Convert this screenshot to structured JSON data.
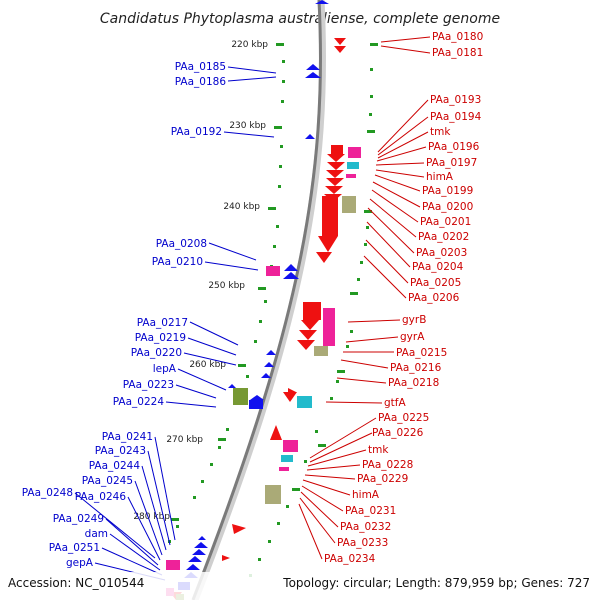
{
  "title": "Candidatus Phytoplasma australiense, complete genome",
  "footer": {
    "accession": "Accession: NC_010544",
    "summary": "Topology: circular; Length: 879,959 bp; Genes: 727"
  },
  "scale_labels": [
    "220 kbp",
    "230 kbp",
    "240 kbp",
    "250 kbp",
    "260 kbp",
    "270 kbp",
    "280 kbp"
  ],
  "genes_right": [
    "PAa_0180",
    "PAa_0181",
    "PAa_0193",
    "PAa_0194",
    "tmk",
    "PAa_0196",
    "PAa_0197",
    "himA",
    "PAa_0199",
    "PAa_0200",
    "PAa_0201",
    "PAa_0202",
    "PAa_0203",
    "PAa_0204",
    "PAa_0205",
    "PAa_0206",
    "gyrB",
    "gyrA",
    "PAa_0215",
    "PAa_0216",
    "PAa_0218",
    "gtfA",
    "PAa_0225",
    "PAa_0226",
    "tmk",
    "PAa_0228",
    "PAa_0229",
    "himA",
    "PAa_0231",
    "PAa_0232",
    "PAa_0233",
    "PAa_0234"
  ],
  "genes_left": [
    "PAa_0185",
    "PAa_0186",
    "PAa_0192",
    "PAa_0208",
    "PAa_0210",
    "PAa_0217",
    "PAa_0219",
    "PAa_0220",
    "lepA",
    "PAa_0223",
    "PAa_0224",
    "PAa_0241",
    "PAa_0243",
    "PAa_0244",
    "PAa_0245",
    "PAa_0246",
    "PAa_0248",
    "PAa_0249",
    "dam",
    "PAa_0251",
    "gepA"
  ],
  "colors": {
    "forward_label": "#cc0000",
    "reverse_label": "#0000cc",
    "forward_gene": "#ee1111",
    "reverse_gene": "#1111ee",
    "rna_pink": "#ee2299",
    "rna_cyan": "#22bbcc",
    "rna_olive": "#aaaa77",
    "rna_green": "#779933",
    "tick_green": "#229922",
    "backbone": "#888888"
  }
}
